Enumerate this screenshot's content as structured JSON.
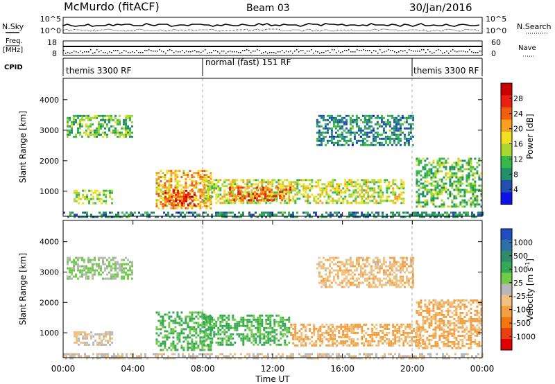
{
  "header": {
    "title": "McMurdo (fitACF)",
    "beam": "Beam 03",
    "date": "30/Jan/2016"
  },
  "left_labels": {
    "nsky": "N.Sky",
    "freq_top": "Freq.",
    "freq_unit": "[MHz]",
    "cpid": "CPID"
  },
  "right_labels": {
    "nsearch": "N.Search",
    "nave": "Nave"
  },
  "noise_axis": {
    "left_top": "10^5",
    "left_bottom": "10^0",
    "right_top": "10^5",
    "right_bottom": "10^0"
  },
  "freq_axis": {
    "left_top": "18",
    "left_bottom": "8",
    "right_top": "60",
    "right_bottom": "0"
  },
  "cpid": {
    "segments": [
      {
        "label": "themis 3300 RF",
        "start_hour": 0,
        "end_hour": 8.0
      },
      {
        "label": "normal (fast) 151 RF",
        "start_hour": 8.0,
        "end_hour": 20.0
      },
      {
        "label": "themis 3300 RF",
        "start_hour": 20.0,
        "end_hour": 24.0
      }
    ]
  },
  "x_axis": {
    "label": "Time UT",
    "ticks": [
      "00:00",
      "04:00",
      "08:00",
      "12:00",
      "16:00",
      "20:00",
      "00:00"
    ]
  },
  "y_axis": {
    "label": "Slant Range [km]",
    "ticks": [
      "1000",
      "2000",
      "3000",
      "4000"
    ]
  },
  "power_colorbar": {
    "label": "Power [dB]",
    "ticks": [
      "4",
      "8",
      "12",
      "16",
      "20",
      "24",
      "28"
    ],
    "colors": [
      "#1010e8",
      "#2050b0",
      "#208f6a",
      "#36b84a",
      "#a8d830",
      "#f0e020",
      "#f8a020",
      "#f06010",
      "#e82010",
      "#c80000"
    ]
  },
  "velocity_colorbar": {
    "label": "Velocity [m s",
    "label_sup": "-1",
    "label_end": "]",
    "ticks": [
      "1000",
      "500",
      "100",
      "25",
      "-25",
      "-100",
      "-500",
      "-1000"
    ],
    "colors": [
      "#2050c0",
      "#2f6fa8",
      "#2e8c6c",
      "#35a854",
      "#70cc48",
      "#b8b8b8",
      "#f0c080",
      "#f0a040",
      "#f07810",
      "#e84010",
      "#e00000"
    ]
  },
  "chart_data": [
    {
      "type": "heatmap",
      "title": "Power [dB]",
      "xlabel": "Time UT",
      "ylabel": "Slant Range [km]",
      "xlim_hours": [
        0,
        24
      ],
      "ylim_km": [
        180,
        4700
      ],
      "cbar_range_db": [
        0,
        32
      ],
      "regions": [
        {
          "t0": 0.2,
          "t1": 3.9,
          "r0": 2800,
          "r1": 3500,
          "value": 12
        },
        {
          "t0": 0.6,
          "t1": 2.8,
          "r0": 600,
          "r1": 1050,
          "value": 14
        },
        {
          "t0": 5.3,
          "t1": 8.5,
          "r0": 450,
          "r1": 1700,
          "value": 20
        },
        {
          "t0": 5.8,
          "t1": 7.5,
          "r0": 550,
          "r1": 1050,
          "value": 26
        },
        {
          "t0": 8.0,
          "t1": 19.5,
          "r0": 600,
          "r1": 1400,
          "value": 16
        },
        {
          "t0": 9.5,
          "t1": 13.0,
          "r0": 700,
          "r1": 1150,
          "value": 24
        },
        {
          "t0": 14.5,
          "t1": 20.0,
          "r0": 2500,
          "r1": 3500,
          "value": 8
        },
        {
          "t0": 20.2,
          "t1": 24.0,
          "r0": 500,
          "r1": 2100,
          "value": 12
        },
        {
          "t0": 0.0,
          "t1": 24.0,
          "r0": 180,
          "r1": 330,
          "value": 8
        }
      ]
    },
    {
      "type": "heatmap",
      "title": "Velocity [m s-1]",
      "xlabel": "Time UT",
      "ylabel": "Slant Range [km]",
      "xlim_hours": [
        0,
        24
      ],
      "ylim_km": [
        180,
        4700
      ],
      "cbar_range_ms": [
        -1000,
        1000
      ],
      "regions": [
        {
          "t0": 0.2,
          "t1": 3.9,
          "r0": 2800,
          "r1": 3500,
          "value": 100
        },
        {
          "t0": 0.6,
          "t1": 2.8,
          "r0": 600,
          "r1": 1050,
          "value": -100
        },
        {
          "t0": 5.3,
          "t1": 8.5,
          "r0": 450,
          "r1": 1700,
          "value": 300
        },
        {
          "t0": 8.0,
          "t1": 13.0,
          "r0": 600,
          "r1": 1600,
          "value": 300
        },
        {
          "t0": 13.0,
          "t1": 20.5,
          "r0": 600,
          "r1": 1300,
          "value": -300
        },
        {
          "t0": 14.5,
          "t1": 20.0,
          "r0": 2500,
          "r1": 3500,
          "value": -200
        },
        {
          "t0": 20.2,
          "t1": 24.0,
          "r0": 500,
          "r1": 2100,
          "value": -300
        },
        {
          "t0": 0.0,
          "t1": 24.0,
          "r0": 180,
          "r1": 330,
          "value": -60
        }
      ]
    }
  ]
}
